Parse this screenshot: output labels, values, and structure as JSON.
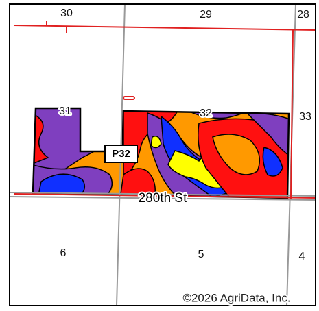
{
  "sections": [
    "30",
    "29",
    "28",
    "31",
    "32",
    "33",
    "6",
    "5",
    "4"
  ],
  "field_label": "P32",
  "road": "280th St",
  "copyright": "©2026 AgriData, Inc."
}
